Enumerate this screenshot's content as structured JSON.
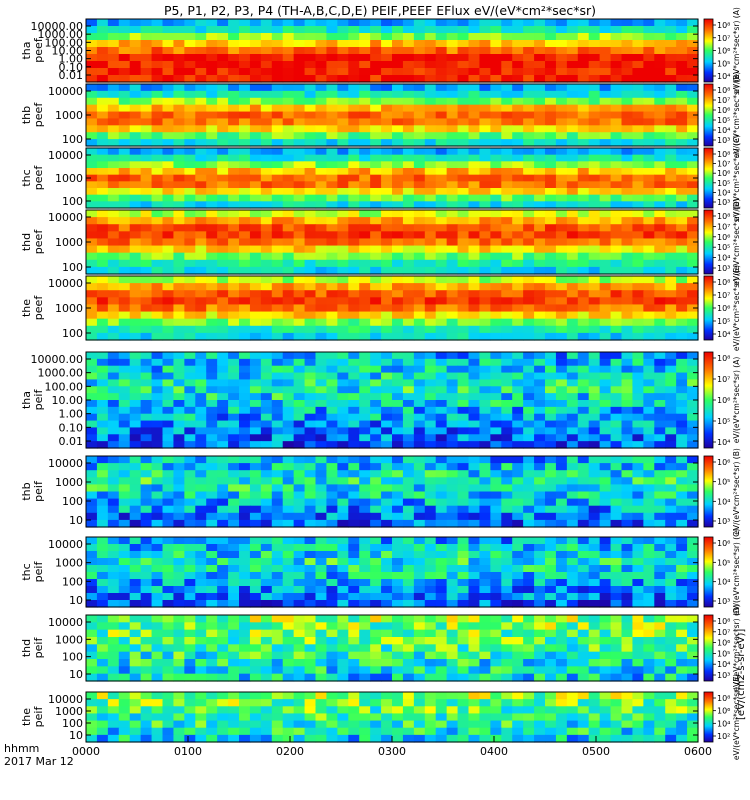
{
  "header": {
    "title": "P5, P1, P2, P3, P4 (TH-A,B,C,D,E) PEIF,PEEF EFlux eV/(eV*cm²*sec*sr)"
  },
  "footer": {
    "time_label": "hhmm",
    "date_label": "2017 Mar 12"
  },
  "colorbar": {
    "units_label": "[eV/(cm2-s-sr-eV)]"
  },
  "chart_data": {
    "type": "heatmap",
    "x_ticks": [
      "0000",
      "0100",
      "0200",
      "0300",
      "0400",
      "0500",
      "0600"
    ],
    "panels": [
      {
        "id": "tha-peef",
        "label1": "tha",
        "label2": "peef",
        "y_ticks": [
          "10000.00",
          "1000.00",
          "100.00",
          "10.00",
          "1.00",
          "0.10",
          "0.01"
        ],
        "cbar_ticks": [
          "10⁸",
          "10⁷",
          "10⁶",
          "10⁵",
          "10⁴"
        ],
        "colorbar_label": "eV/(eV*cm²*sec*sr) (A)"
      },
      {
        "id": "thb-peef",
        "label1": "thb",
        "label2": "peef",
        "y_ticks": [
          "10000",
          "1000",
          "100"
        ],
        "cbar_ticks": [
          "10⁸",
          "10⁷",
          "10⁶",
          "10⁵",
          "10⁴",
          "10³"
        ],
        "colorbar_label": "eV/(eV*cm²*sec*sr) (B)"
      },
      {
        "id": "thc-peef",
        "label1": "thc",
        "label2": "peef",
        "y_ticks": [
          "10000",
          "1000",
          "100"
        ],
        "cbar_ticks": [
          "10⁸",
          "10⁷",
          "10⁶",
          "10⁵",
          "10⁴",
          "10³"
        ],
        "colorbar_label": "eV/(eV*cm²*sec*sr) (C)"
      },
      {
        "id": "thd-peef",
        "label1": "thd",
        "label2": "peef",
        "y_ticks": [
          "10000",
          "1000",
          "100"
        ],
        "cbar_ticks": [
          "10⁸",
          "10⁷",
          "10⁶",
          "10⁵",
          "10⁴",
          "10³"
        ],
        "colorbar_label": "eV/(eV*cm²*sec*sr) (D)"
      },
      {
        "id": "the-peef",
        "label1": "the",
        "label2": "peef",
        "y_ticks": [
          "10000",
          "1000",
          "100"
        ],
        "cbar_ticks": [
          "10⁸",
          "10⁷",
          "10⁶",
          "10⁵",
          "10⁴"
        ],
        "colorbar_label": "eV/(eV*cm²*sec*sr) (E)"
      },
      {
        "id": "tha-peif",
        "label1": "tha",
        "label2": "peif",
        "y_ticks": [
          "10000.00",
          "1000.00",
          "100.00",
          "10.00",
          "1.00",
          "0.10",
          "0.01"
        ],
        "cbar_ticks": [
          "10⁸",
          "10⁷",
          "10⁶",
          "10⁵",
          "10⁴"
        ],
        "colorbar_label": "eV/(eV*cm²*sec*sr) (A)"
      },
      {
        "id": "thb-peif",
        "label1": "thb",
        "label2": "peif",
        "y_ticks": [
          "10000",
          "1000",
          "100",
          "10"
        ],
        "cbar_ticks": [
          "10⁶",
          "10⁵",
          "10⁴",
          "10³"
        ],
        "colorbar_label": "eV/(eV*cm²*sec*sr) (B)"
      },
      {
        "id": "thc-peif",
        "label1": "thc",
        "label2": "peif",
        "y_ticks": [
          "10000",
          "1000",
          "100",
          "10"
        ],
        "cbar_ticks": [
          "10⁶",
          "10⁵",
          "10⁴",
          "10³"
        ],
        "colorbar_label": "eV/(eV*cm²*sec*sr) (C)"
      },
      {
        "id": "thd-peif",
        "label1": "thd",
        "label2": "peif",
        "y_ticks": [
          "10000",
          "1000",
          "100",
          "10"
        ],
        "cbar_ticks": [
          "10⁸",
          "10⁷",
          "10⁶",
          "10⁵",
          "10⁴",
          "10³"
        ],
        "colorbar_label": "eV/(eV*cm²*sec*sr) (D)"
      },
      {
        "id": "the-peif",
        "label1": "the",
        "label2": "peif",
        "y_ticks": [
          "10000",
          "1000",
          "100",
          "10"
        ],
        "cbar_ticks": [
          "10⁸",
          "10⁶",
          "10⁴",
          "10²"
        ],
        "colorbar_label": "eV/(eV*cm²*sec*sr) (E)"
      }
    ]
  }
}
